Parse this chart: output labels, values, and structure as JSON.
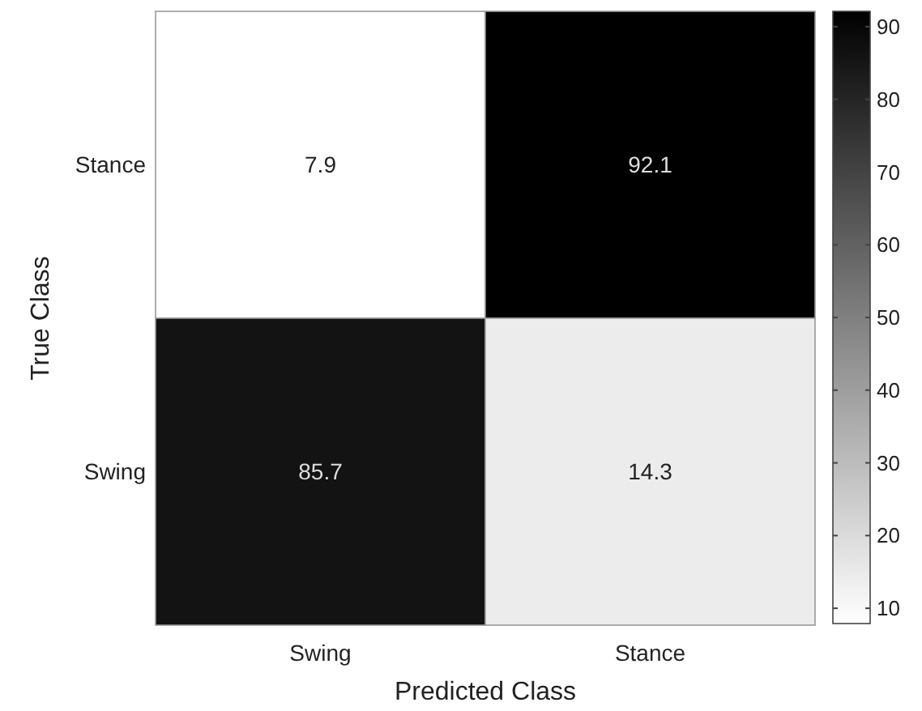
{
  "chart_data": {
    "type": "heatmap",
    "xlabel": "Predicted Class",
    "ylabel": "True Class",
    "categories": [
      "Swing",
      "Stance"
    ],
    "y_categories": [
      "Stance",
      "Swing"
    ],
    "cells": [
      [
        7.9,
        92.1
      ],
      [
        85.7,
        14.3
      ]
    ],
    "clim": [
      7.9,
      92.1
    ],
    "cticks": [
      10,
      20,
      30,
      40,
      50,
      60,
      70,
      80,
      90
    ],
    "data_labels": true
  }
}
